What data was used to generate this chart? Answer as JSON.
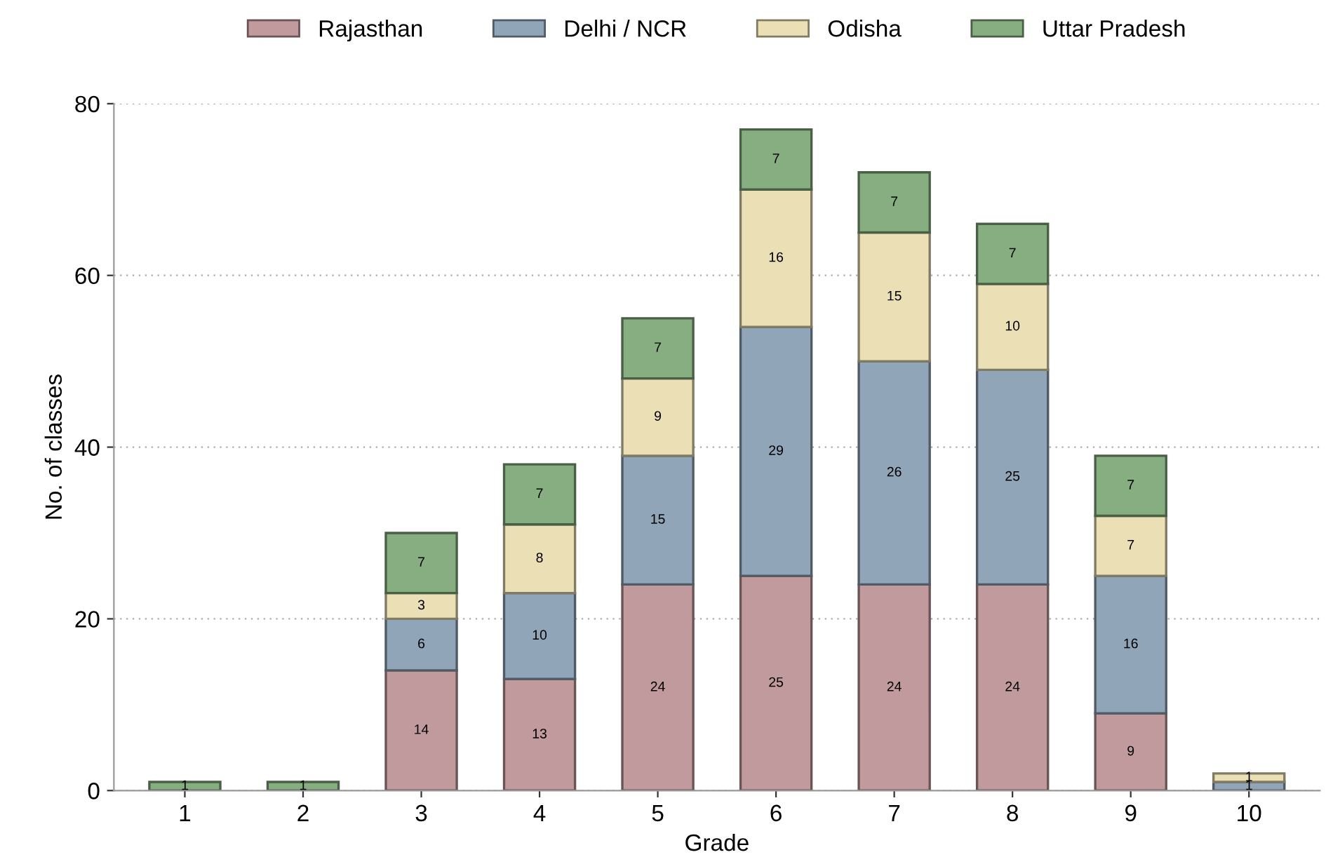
{
  "chart_data": {
    "type": "bar",
    "stacked": true,
    "xlabel": "Grade",
    "ylabel": "No. of classes",
    "categories": [
      "1",
      "2",
      "3",
      "4",
      "5",
      "6",
      "7",
      "8",
      "9",
      "10"
    ],
    "series": [
      {
        "name": "Rajasthan",
        "color": "#c09a9c",
        "values": [
          null,
          null,
          14,
          13,
          24,
          25,
          24,
          24,
          9,
          null
        ]
      },
      {
        "name": "Delhi / NCR",
        "color": "#91a5b9",
        "values": [
          null,
          null,
          6,
          10,
          15,
          29,
          26,
          25,
          16,
          1
        ]
      },
      {
        "name": "Odisha",
        "color": "#ebe0b5",
        "values": [
          null,
          null,
          3,
          8,
          9,
          16,
          15,
          10,
          7,
          1
        ]
      },
      {
        "name": "Uttar Pradesh",
        "color": "#86ae80",
        "values": [
          1,
          1,
          7,
          7,
          7,
          7,
          7,
          7,
          7,
          null
        ]
      }
    ],
    "ylim": [
      0,
      80
    ],
    "yticks": [
      0,
      20,
      40,
      60,
      80
    ],
    "grid": "y",
    "legend": "top",
    "data_labels": true
  }
}
